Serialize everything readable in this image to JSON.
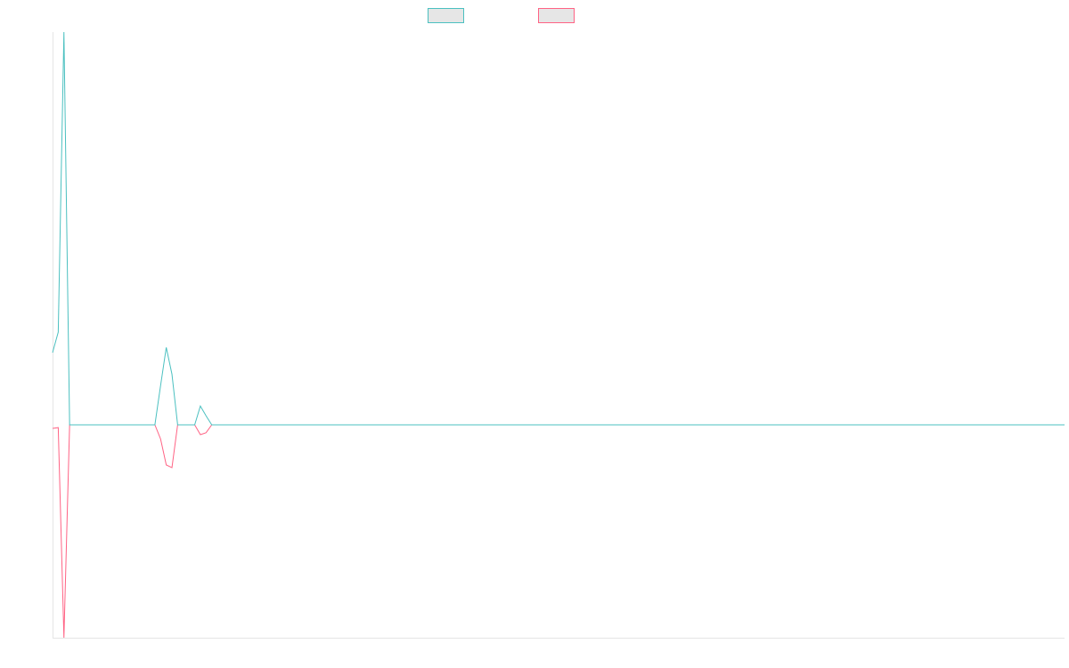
{
  "chart_data": {
    "type": "line",
    "ylim": [
      -54.2,
      100
    ],
    "series": [
      {
        "color": "#4bc0c0",
        "values": [
          18.4,
          23.6,
          100,
          0,
          0,
          0,
          0,
          0,
          0,
          0,
          0,
          0,
          0,
          0,
          0,
          0,
          0,
          0,
          0,
          10,
          19.7,
          12.9,
          0,
          0,
          0,
          0,
          4.8,
          2.3,
          0,
          0,
          0,
          0,
          0,
          0,
          0,
          0,
          0,
          0,
          0,
          0,
          0,
          0,
          0,
          0,
          0,
          0,
          0,
          0,
          0,
          0,
          0,
          0,
          0,
          0,
          0,
          0,
          0,
          0,
          0,
          0,
          0,
          0,
          0,
          0,
          0,
          0,
          0,
          0,
          0,
          0,
          0,
          0,
          0,
          0,
          0,
          0,
          0,
          0,
          0,
          0,
          0,
          0,
          0,
          0,
          0,
          0,
          0,
          0,
          0,
          0,
          0,
          0,
          0,
          0,
          0,
          0,
          0,
          0,
          0,
          0,
          0,
          0,
          0,
          0,
          0,
          0,
          0,
          0,
          0,
          0,
          0,
          0,
          0,
          0,
          0,
          0,
          0,
          0,
          0,
          0,
          0,
          0,
          0,
          0,
          0,
          0,
          0,
          0,
          0,
          0,
          0,
          0,
          0,
          0,
          0,
          0,
          0,
          0,
          0,
          0,
          0,
          0,
          0,
          0,
          0,
          0,
          0,
          0,
          0,
          0,
          0,
          0,
          0,
          0,
          0,
          0,
          0,
          0,
          0,
          0,
          0,
          0,
          0,
          0,
          0,
          0,
          0,
          0,
          0,
          0,
          0,
          0,
          0,
          0,
          0,
          0,
          0,
          0,
          0
        ]
      },
      {
        "color": "#ff6384",
        "values": [
          -0.9,
          -0.7,
          -54.2,
          0,
          0,
          0,
          0,
          0,
          0,
          0,
          0,
          0,
          0,
          0,
          0,
          0,
          0,
          0,
          0,
          -3.6,
          -10.2,
          -10.9,
          0,
          0,
          0,
          0,
          -2.5,
          -2,
          0,
          0,
          0,
          0,
          0,
          0,
          0,
          0,
          0,
          0,
          0,
          0,
          0,
          0,
          0,
          0,
          0,
          0,
          0,
          0,
          0,
          0,
          0,
          0,
          0,
          0,
          0,
          0,
          0,
          0,
          0,
          0,
          0,
          0,
          0,
          0,
          0,
          0,
          0,
          0,
          0,
          0,
          0,
          0,
          0,
          0,
          0,
          0,
          0,
          0,
          0,
          0,
          0,
          0,
          0,
          0,
          0,
          0,
          0,
          0,
          0,
          0,
          0,
          0,
          0,
          0,
          0,
          0,
          0,
          0,
          0,
          0,
          0,
          0,
          0,
          0,
          0,
          0,
          0,
          0,
          0,
          0,
          0,
          0,
          0,
          0,
          0,
          0,
          0,
          0,
          0,
          0,
          0,
          0,
          0,
          0,
          0,
          0,
          0,
          0,
          0,
          0,
          0,
          0,
          0,
          0,
          0,
          0,
          0,
          0,
          0,
          0,
          0,
          0,
          0,
          0,
          0,
          0,
          0,
          0,
          0,
          0,
          0,
          0,
          0,
          0,
          0,
          0,
          0,
          0,
          0,
          0,
          0,
          0,
          0,
          0,
          0,
          0,
          0,
          0,
          0,
          0,
          0,
          0,
          0,
          0,
          0,
          0,
          0,
          0,
          0
        ]
      }
    ]
  }
}
